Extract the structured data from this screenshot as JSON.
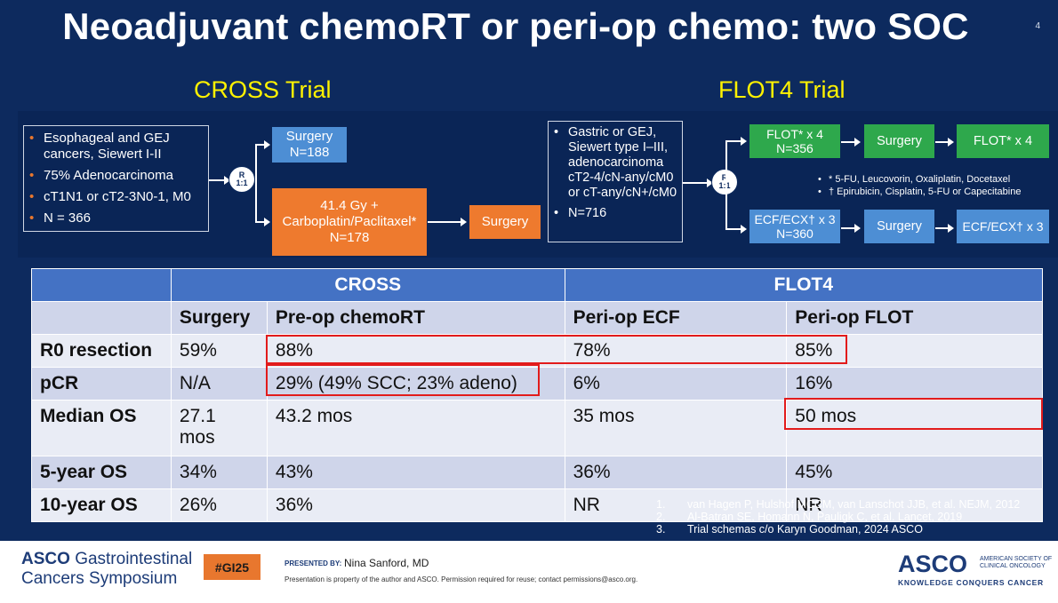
{
  "title": "Neoadjuvant chemoRT or peri-op chemo: two SOC",
  "slide_number": "4",
  "cross": {
    "heading": "CROSS Trial",
    "criteria": [
      "Esophageal and GEJ cancers, Siewert I-II",
      "75% Adenocarcinoma",
      "cT1N1 or cT2-3N0-1, M0",
      "N = 366"
    ],
    "randomize": [
      "R",
      "1:1"
    ],
    "arm_surgery": [
      "Surgery",
      "N=188"
    ],
    "arm_chemort": [
      "41.4 Gy +",
      "Carboplatin/Paclitaxel*",
      "N=178"
    ],
    "arm_chemort_next": "Surgery"
  },
  "flot": {
    "heading": "FLOT4 Trial",
    "criteria_line1": "Gastric or GEJ, Siewert type I–III, adenocarcinoma cT2-4/cN-any/cM0 or cT-any/cN+/cM0",
    "criteria_line2": "N=716",
    "randomize": [
      "R",
      "1:1"
    ],
    "arm1": [
      "FLOT* x 4",
      "N=356"
    ],
    "arm1_surgery": "Surgery",
    "arm1_after": "FLOT* x 4",
    "arm2": [
      "ECF/ECX† x 3",
      "N=360"
    ],
    "arm2_surgery": "Surgery",
    "arm2_after": "ECF/ECX† x 3",
    "notes": [
      "* 5-FU, Leucovorin, Oxaliplatin, Docetaxel",
      "† Epirubicin, Cisplatin, 5-FU or Capecitabine"
    ]
  },
  "table": {
    "groups": [
      "CROSS",
      "FLOT4"
    ],
    "columns": [
      "Surgery",
      "Pre-op chemoRT",
      "Peri-op ECF",
      "Peri-op FLOT"
    ],
    "rows": [
      {
        "label": "R0 resection",
        "cells": [
          "59%",
          "88%",
          "78%",
          "85%"
        ]
      },
      {
        "label": "pCR",
        "cells": [
          "N/A",
          "29% (49% SCC; 23% adeno)",
          "6%",
          "16%"
        ]
      },
      {
        "label": "Median OS",
        "cells": [
          "27.1 mos",
          "43.2 mos",
          "35 mos",
          "50 mos"
        ]
      },
      {
        "label": "5-year OS",
        "cells": [
          "34%",
          "43%",
          "36%",
          "45%"
        ]
      },
      {
        "label": "10-year OS",
        "cells": [
          "26%",
          "36%",
          "NR",
          "NR"
        ]
      }
    ]
  },
  "references": [
    {
      "n": "1.",
      "text": "van Hagen P, Hulshof MCCM, van Lanschot JJB, et al. NEJM, 2012"
    },
    {
      "n": "2.",
      "text": "Al-Batran SE, Homann N, Pauligk C, et al. Lancet, 2019"
    },
    {
      "n": "3.",
      "text": "Trial schemas c/o Karyn Goodman, 2024 ASCO"
    }
  ],
  "footer": {
    "brand_left_1": "ASCO",
    "brand_left_1b": "Gastrointestinal",
    "brand_left_2": "Cancers Symposium",
    "hashtag": "#GI25",
    "presented_by": "PRESENTED BY:",
    "presenter": "Nina Sanford, MD",
    "disclaimer": "Presentation is property of the author and ASCO. Permission required for reuse; contact permissions@asco.org.",
    "brand_right": "ASCO",
    "brand_right_sub": "AMERICAN SOCIETY OF CLINICAL ONCOLOGY",
    "brand_right_tag": "KNOWLEDGE CONQUERS CANCER"
  }
}
